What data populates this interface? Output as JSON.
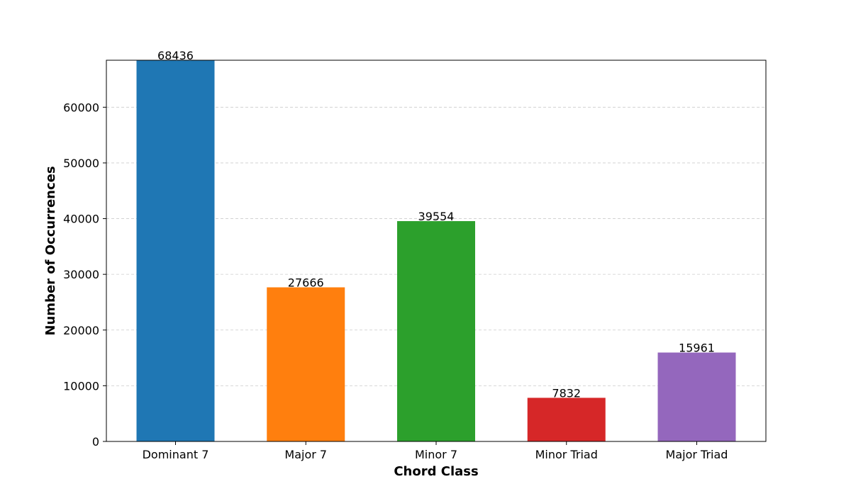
{
  "chart_data": {
    "type": "bar",
    "title": "",
    "xlabel": "Chord Class",
    "ylabel": "Number of Occurrences",
    "categories": [
      "Dominant 7",
      "Major 7",
      "Minor 7",
      "Minor Triad",
      "Major Triad"
    ],
    "values": [
      68436,
      27666,
      39554,
      7832,
      15961
    ],
    "data_labels": [
      "68436",
      "27666",
      "39554",
      "7832",
      "15961"
    ],
    "colors": [
      "#1f77b4",
      "#ff7f0e",
      "#2ca02c",
      "#d62728",
      "#9467bd"
    ],
    "ylim": [
      0,
      68436
    ],
    "yticks": [
      0,
      10000,
      20000,
      30000,
      40000,
      50000,
      60000
    ],
    "ytick_labels": [
      "0",
      "10000",
      "20000",
      "30000",
      "40000",
      "50000",
      "60000"
    ],
    "grid": "y-dashed",
    "legend": "none"
  }
}
